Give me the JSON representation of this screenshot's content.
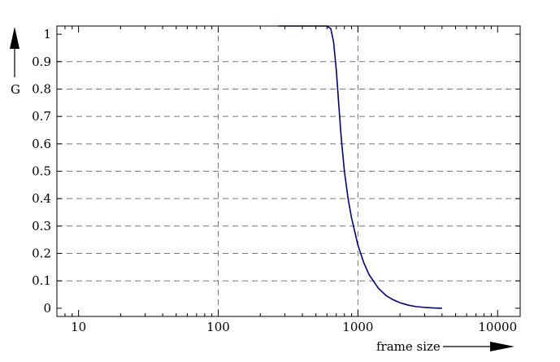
{
  "chart_data": {
    "type": "line",
    "title": "",
    "xlabel": "frame size",
    "ylabel": "G",
    "xscale": "log",
    "xlim": [
      7,
      14500
    ],
    "ylim": [
      -0.03,
      1.03
    ],
    "grid": true,
    "x_ticks": [
      10,
      100,
      1000,
      10000
    ],
    "x_tick_labels": [
      "10",
      "100",
      "1000",
      "10000"
    ],
    "y_ticks": [
      0,
      0.1,
      0.2,
      0.3,
      0.4,
      0.5,
      0.6,
      0.7,
      0.8,
      0.9,
      1
    ],
    "y_tick_labels": [
      "0",
      "0.1",
      "0.2",
      "0.3",
      "0.4",
      "0.5",
      "0.6",
      "0.7",
      "0.8",
      "0.9",
      "1"
    ],
    "line_color": "#00008b",
    "series": [
      {
        "x": [
          270,
          600,
          640,
          670,
          700,
          730,
          760,
          800,
          850,
          900,
          1000,
          1100,
          1200,
          1400,
          1600,
          1800,
          2000,
          2300,
          2600,
          3000,
          3500,
          4000
        ],
        "y": [
          1.03,
          1.03,
          1.02,
          0.97,
          0.87,
          0.74,
          0.62,
          0.5,
          0.4,
          0.33,
          0.23,
          0.167,
          0.123,
          0.073,
          0.045,
          0.03,
          0.02,
          0.011,
          0.006,
          0.003,
          0.001,
          0.0
        ]
      }
    ]
  }
}
